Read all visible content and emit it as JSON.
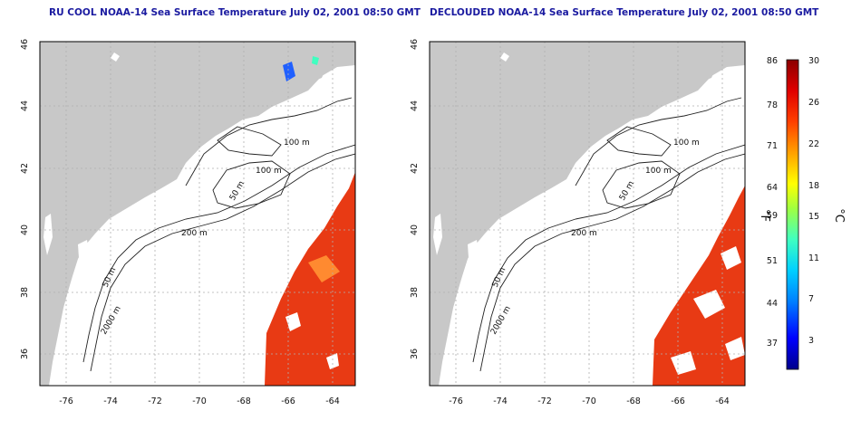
{
  "panels": [
    {
      "title": "RU COOL NOAA-14 Sea Surface Temperature July 02, 2001 08:50 GMT",
      "xticks": [
        "-76",
        "-74",
        "-72",
        "-70",
        "-68",
        "-66",
        "-64"
      ],
      "yticks": [
        "36",
        "38",
        "40",
        "42",
        "44",
        "46"
      ],
      "contour_labels": [
        "100 m",
        "100 m",
        "50 m",
        "200 m",
        "50 m",
        "2000 m"
      ]
    },
    {
      "title": "DECLOUDED NOAA-14 Sea Surface Temperature July 02, 2001 08:50 GMT",
      "xticks": [
        "-76",
        "-74",
        "-72",
        "-70",
        "-68",
        "-66",
        "-64"
      ],
      "yticks": [
        "36",
        "38",
        "40",
        "42",
        "44",
        "46"
      ],
      "contour_labels": [
        "100 m",
        "100 m",
        "50 m",
        "200 m",
        "50 m",
        "2000 m"
      ]
    }
  ],
  "colorbar": {
    "fahrenheit_ticks": [
      "86",
      "78",
      "71",
      "64",
      "59",
      "51",
      "44",
      "37"
    ],
    "celsius_ticks": [
      "30",
      "26",
      "22",
      "18",
      "15",
      "11",
      "7",
      "3"
    ],
    "fahrenheit_unit": "°F",
    "celsius_unit": "°C",
    "colors": [
      "#00008b",
      "#0000ff",
      "#0080ff",
      "#00c0ff",
      "#00ffff",
      "#40ffc0",
      "#80ff40",
      "#ffff00",
      "#ffc000",
      "#ff8000",
      "#ff3000",
      "#e00000",
      "#8b0000"
    ]
  },
  "colors": {
    "land": "#c8c8c8",
    "ocean": "#ffffff",
    "sst": "#e83a14",
    "title": "#1a1aa0"
  }
}
